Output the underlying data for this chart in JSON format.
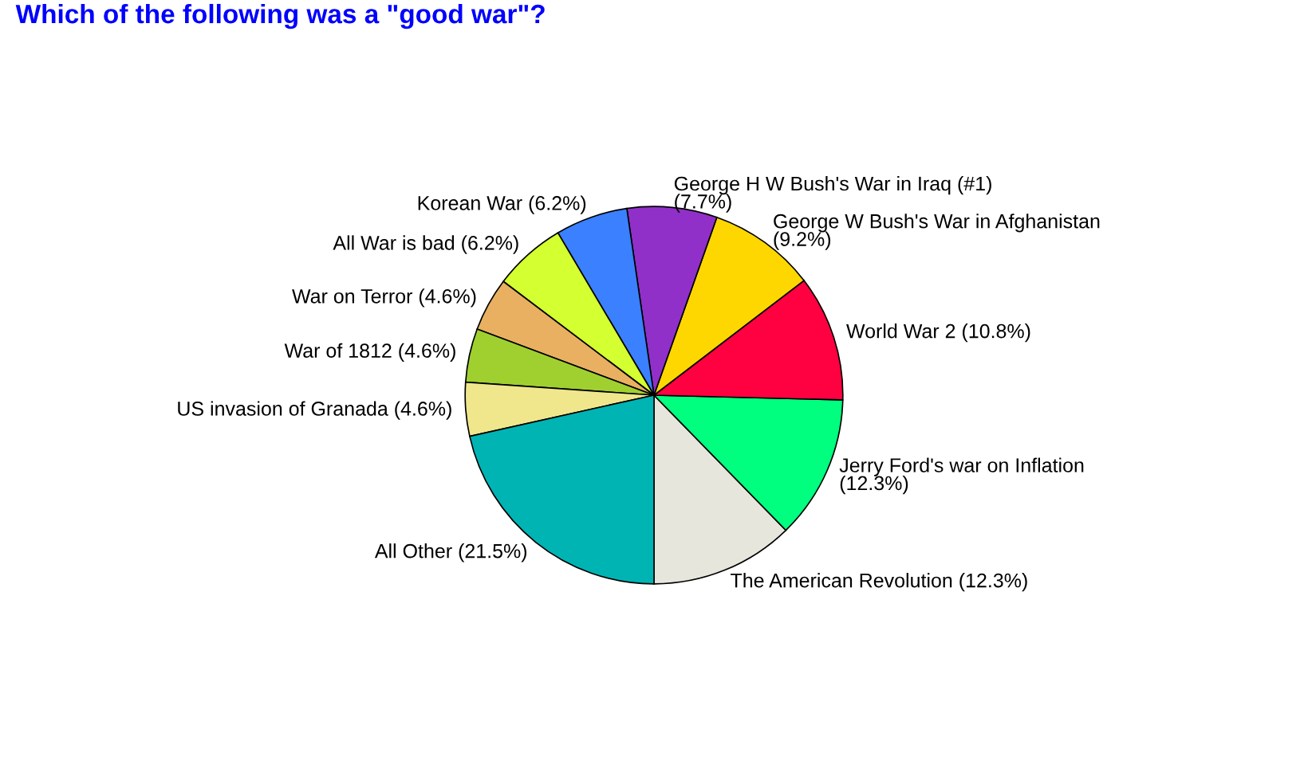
{
  "chart_data": {
    "type": "pie",
    "title": "Which of the following was a \"good war\"?",
    "categories": [
      "The American Revolution (12.3%)",
      "Jerry Ford's war on Inflation\n(12.3%)",
      "World War 2 (10.8%)",
      "George W Bush's War in Afghanistan\n(9.2%)",
      "George H W Bush's War in Iraq (#1)\n(7.7%)",
      "Korean War (6.2%)",
      "All War is bad (6.2%)",
      "War on Terror (4.6%)",
      "War of 1812 (4.6%)",
      "US invasion of Granada (4.6%)",
      "All Other (21.5%)"
    ],
    "values": [
      12.3,
      12.3,
      10.8,
      9.2,
      7.7,
      6.2,
      6.2,
      4.6,
      4.6,
      4.6,
      21.5
    ],
    "colors": [
      "#e6e6dc",
      "#00ff7f",
      "#ff0040",
      "#ffd700",
      "#9030c8",
      "#3a80ff",
      "#d4ff30",
      "#e8b060",
      "#a0d030",
      "#f0e68c",
      "#00b4b4"
    ],
    "legend": false
  }
}
